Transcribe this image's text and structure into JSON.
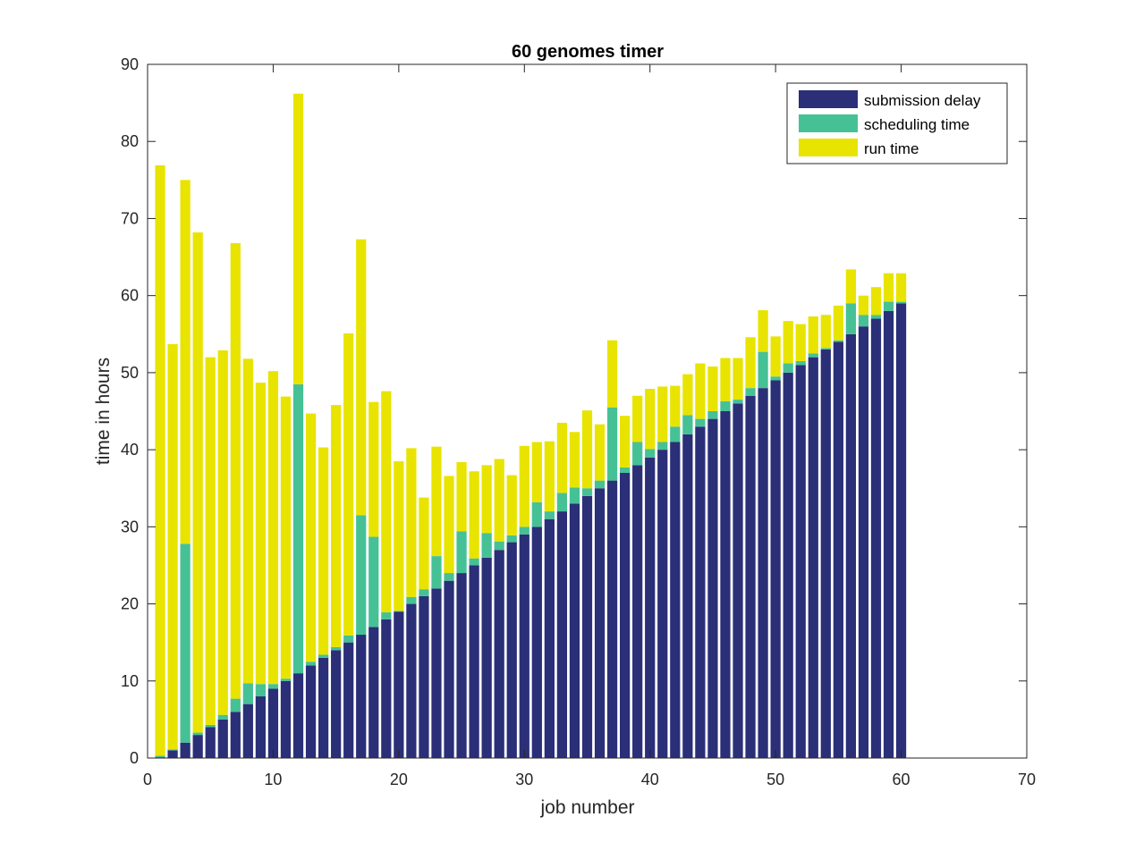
{
  "chart_data": {
    "type": "bar",
    "stacked": true,
    "title": "60 genomes timer",
    "xlabel": "job number",
    "ylabel": "time in hours",
    "xlim": [
      0,
      70
    ],
    "ylim": [
      0,
      90
    ],
    "xticks": [
      0,
      10,
      20,
      30,
      40,
      50,
      60,
      70
    ],
    "yticks": [
      0,
      10,
      20,
      30,
      40,
      50,
      60,
      70,
      80,
      90
    ],
    "grid": false,
    "legend_position": "top-right",
    "x": [
      1,
      2,
      3,
      4,
      5,
      6,
      7,
      8,
      9,
      10,
      11,
      12,
      13,
      14,
      15,
      16,
      17,
      18,
      19,
      20,
      21,
      22,
      23,
      24,
      25,
      26,
      27,
      28,
      29,
      30,
      31,
      32,
      33,
      34,
      35,
      36,
      37,
      38,
      39,
      40,
      41,
      42,
      43,
      44,
      45,
      46,
      47,
      48,
      49,
      50,
      51,
      52,
      53,
      54,
      55,
      56,
      57,
      58,
      59,
      60
    ],
    "series": [
      {
        "name": "submission delay",
        "color": "#2a2f78",
        "values": [
          0.1,
          1,
          2,
          3,
          4,
          5,
          6,
          7,
          8,
          9,
          10,
          11,
          12,
          13,
          14,
          15,
          16,
          17,
          18,
          19,
          20,
          21,
          22,
          23,
          24,
          25,
          26,
          27,
          28,
          29,
          30,
          31,
          32,
          33,
          34,
          35,
          36,
          37,
          38,
          39,
          40,
          41,
          42,
          43,
          44,
          45,
          46,
          47,
          48,
          49,
          50,
          51,
          52,
          53,
          54,
          55,
          56,
          57,
          58,
          59
        ]
      },
      {
        "name": "scheduling time",
        "color": "#46c196",
        "values": [
          0.2,
          0.1,
          25.8,
          0.3,
          0.3,
          0.6,
          1.7,
          2.7,
          1.6,
          0.6,
          0.3,
          37.5,
          0.5,
          0.4,
          0.4,
          0.9,
          15.5,
          11.7,
          0.9,
          0.1,
          0.9,
          0.9,
          4.2,
          1.0,
          5.4,
          0.9,
          3.2,
          1.1,
          0.9,
          1.0,
          3.2,
          1.0,
          2.4,
          2.1,
          1.0,
          1.0,
          9.5,
          0.7,
          3.0,
          1.1,
          1.0,
          2.0,
          2.5,
          1.0,
          1.0,
          1.3,
          0.5,
          1.0,
          4.7,
          0.5,
          1.2,
          0.5,
          0.5,
          0.2,
          0.2,
          4.0,
          1.5,
          0.5,
          1.2,
          0.2
        ]
      },
      {
        "name": "run time",
        "color": "#e8e400",
        "values": [
          76.6,
          52.6,
          47.2,
          64.9,
          47.7,
          47.3,
          59.1,
          42.1,
          39.1,
          40.6,
          36.6,
          37.7,
          32.2,
          26.9,
          31.4,
          39.2,
          35.8,
          17.5,
          28.7,
          19.4,
          19.3,
          11.9,
          14.2,
          12.6,
          9.0,
          11.3,
          8.8,
          10.7,
          7.8,
          10.5,
          7.8,
          9.1,
          9.1,
          7.2,
          10.1,
          7.3,
          8.7,
          6.7,
          6.0,
          7.8,
          7.2,
          5.3,
          5.3,
          7.2,
          5.8,
          5.6,
          5.4,
          6.6,
          5.4,
          5.2,
          5.5,
          4.8,
          4.8,
          4.3,
          4.5,
          4.4,
          2.5,
          3.6,
          3.7,
          3.7
        ]
      }
    ]
  }
}
